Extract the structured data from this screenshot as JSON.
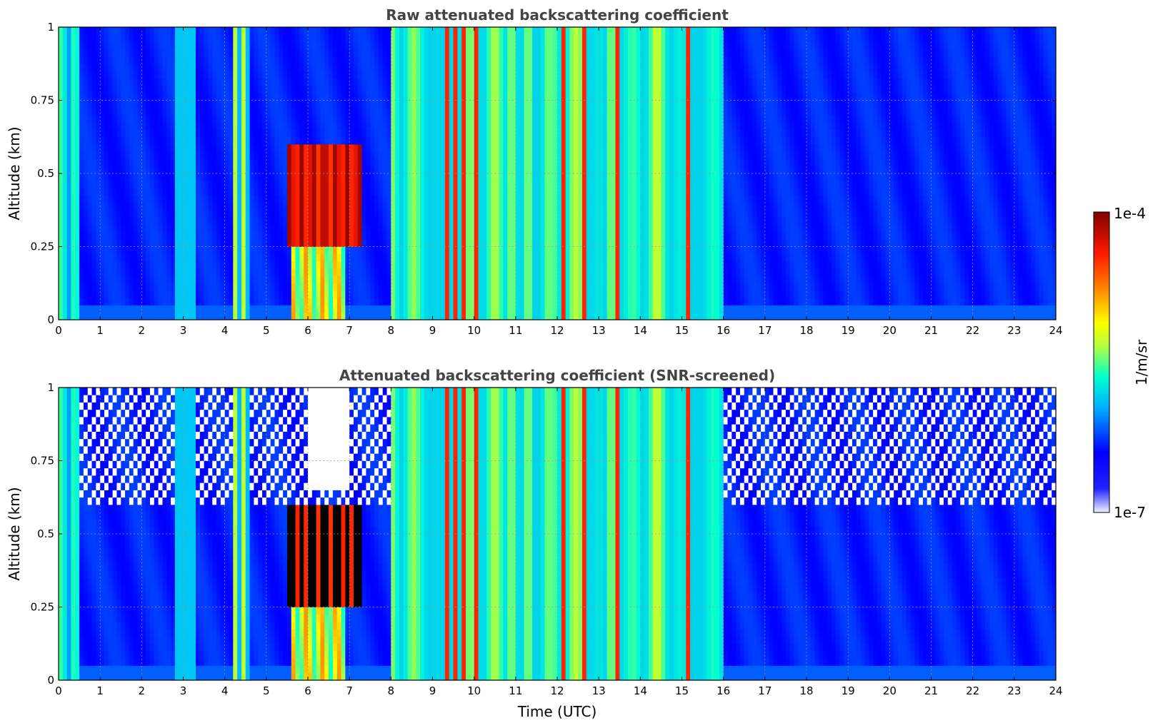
{
  "chart_data": [
    {
      "type": "heatmap",
      "title": "Raw attenuated backscattering coefficient",
      "xlabel": "",
      "ylabel": "Altitude (km)",
      "xlim": [
        0,
        24
      ],
      "ylim": [
        0,
        1
      ],
      "xticks": [
        "0",
        "1",
        "2",
        "3",
        "4",
        "5",
        "6",
        "7",
        "8",
        "9",
        "10",
        "11",
        "12",
        "13",
        "14",
        "15",
        "16",
        "17",
        "18",
        "19",
        "20",
        "21",
        "22",
        "23",
        "24"
      ],
      "yticks": [
        "0",
        "0.25",
        "0.5",
        "0.75",
        "1"
      ],
      "grid": true,
      "colormap": "jet",
      "color_scale": "log",
      "vmin": "1e-7",
      "vmax": "1e-4",
      "screened": false
    },
    {
      "type": "heatmap",
      "title": "Attenuated backscattering coefficient (SNR-screened)",
      "xlabel": "Time (UTC)",
      "ylabel": "Altitude (km)",
      "xlim": [
        0,
        24
      ],
      "ylim": [
        0,
        1
      ],
      "xticks": [
        "0",
        "1",
        "2",
        "3",
        "4",
        "5",
        "6",
        "7",
        "8",
        "9",
        "10",
        "11",
        "12",
        "13",
        "14",
        "15",
        "16",
        "17",
        "18",
        "19",
        "20",
        "21",
        "22",
        "23",
        "24"
      ],
      "yticks": [
        "0",
        "0.25",
        "0.5",
        "0.75",
        "1"
      ],
      "grid": true,
      "colormap": "jet",
      "color_scale": "log",
      "vmin": "1e-7",
      "vmax": "1e-4",
      "screened": true
    }
  ],
  "colorbar": {
    "label": "1/m/sr",
    "max_label": "1e-4",
    "min_label": "1e-7",
    "colors": [
      "#f0f0ff",
      "#0000ff",
      "#00b0ff",
      "#00ffd0",
      "#b0ff40",
      "#ffff00",
      "#ff8000",
      "#ff1a00",
      "#800000"
    ]
  }
}
